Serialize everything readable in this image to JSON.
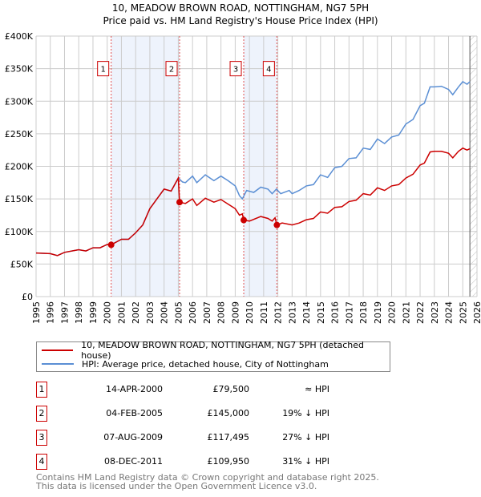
{
  "chart_data": {
    "type": "line",
    "title": "10, MEADOW BROWN ROAD, NOTTINGHAM, NG7 5PH",
    "subtitle": "Price paid vs. HM Land Registry's House Price Index (HPI)",
    "xlim": [
      1995,
      2026
    ],
    "ylim": [
      0,
      400000
    ],
    "x_ticks": [
      "1995",
      "1996",
      "1997",
      "1998",
      "1999",
      "2000",
      "2001",
      "2002",
      "2003",
      "2004",
      "2005",
      "2006",
      "2007",
      "2008",
      "2009",
      "2010",
      "2011",
      "2012",
      "2013",
      "2014",
      "2015",
      "2016",
      "2017",
      "2018",
      "2019",
      "2020",
      "2021",
      "2022",
      "2023",
      "2024",
      "2025",
      "2026"
    ],
    "y_ticks": [
      {
        "v": 0,
        "label": "£0"
      },
      {
        "v": 50000,
        "label": "£50K"
      },
      {
        "v": 100000,
        "label": "£100K"
      },
      {
        "v": 150000,
        "label": "£150K"
      },
      {
        "v": 200000,
        "label": "£200K"
      },
      {
        "v": 250000,
        "label": "£250K"
      },
      {
        "v": 300000,
        "label": "£300K"
      },
      {
        "v": 350000,
        "label": "£350K"
      },
      {
        "v": 400000,
        "label": "£400K"
      }
    ],
    "grid": true,
    "projection_start": 2025.5,
    "shaded_ranges": [
      [
        2000.28,
        2005.09
      ],
      [
        2009.6,
        2011.93
      ]
    ],
    "series": [
      {
        "name": "HPI: Average price, detached house, City of Nottingham",
        "color": "#5b8fd4",
        "x": [
          1995,
          1996,
          1996.5,
          1997,
          1998,
          1998.5,
          1999,
          1999.5,
          2000,
          2000.3,
          2001,
          2001.5,
          2002,
          2002.5,
          2003,
          2003.5,
          2004,
          2004.5,
          2005,
          2005.3,
          2005.5,
          2006,
          2006.3,
          2006.9,
          2007.5,
          2008,
          2008.5,
          2009,
          2009.3,
          2009.5,
          2009.8,
          2010.3,
          2010.8,
          2011.3,
          2011.6,
          2011.9,
          2012.2,
          2012.8,
          2013,
          2013.5,
          2014,
          2014.5,
          2015,
          2015.5,
          2016,
          2016.5,
          2017,
          2017.5,
          2018,
          2018.5,
          2019,
          2019.5,
          2020,
          2020.5,
          2021,
          2021.5,
          2022,
          2022.3,
          2022.7,
          2023,
          2023.5,
          2024,
          2024.3,
          2024.7,
          2025,
          2025.3,
          2025.5
        ],
        "y": [
          67,
          66,
          63,
          68,
          72,
          70,
          75,
          75,
          80,
          80,
          88,
          88,
          98,
          110,
          135,
          150,
          165,
          162,
          182,
          176,
          175,
          185,
          175,
          187,
          178,
          185,
          178,
          170,
          155,
          150,
          163,
          160,
          168,
          165,
          158,
          165,
          158,
          163,
          158,
          163,
          170,
          172,
          187,
          183,
          198,
          200,
          212,
          213,
          228,
          226,
          242,
          235,
          245,
          248,
          265,
          272,
          293,
          297,
          322,
          322,
          323,
          318,
          310,
          322,
          330,
          326,
          330
        ]
      },
      {
        "name": "10, MEADOW BROWN ROAD, NOTTINGHAM, NG7 5PH (detached house)",
        "color": "#cc0000",
        "x": [
          1995,
          1996,
          1996.5,
          1997,
          1998,
          1998.5,
          1999,
          1999.5,
          2000,
          2000.28,
          2001,
          2001.5,
          2002,
          2002.5,
          2003,
          2003.5,
          2004,
          2004.5,
          2005,
          2005.09,
          2005.5,
          2006,
          2006.3,
          2006.9,
          2007.5,
          2008,
          2008.5,
          2009,
          2009.3,
          2009.5,
          2009.6,
          2010,
          2010.8,
          2011.3,
          2011.6,
          2011.8,
          2011.93,
          2012.3,
          2013,
          2013.5,
          2014,
          2014.5,
          2015,
          2015.5,
          2016,
          2016.5,
          2017,
          2017.5,
          2018,
          2018.5,
          2019,
          2019.5,
          2020,
          2020.5,
          2021,
          2021.5,
          2022,
          2022.3,
          2022.7,
          2023,
          2023.5,
          2024,
          2024.3,
          2024.7,
          2025,
          2025.3,
          2025.5
        ],
        "y": [
          67,
          66,
          63,
          68,
          72,
          70,
          75,
          75,
          80,
          79.5,
          88,
          88,
          98,
          110,
          135,
          150,
          165,
          162,
          182,
          145,
          143,
          150,
          140,
          151,
          145,
          149,
          142,
          135,
          125,
          127,
          117.495,
          116,
          123,
          120,
          116,
          121,
          109.95,
          113,
          110,
          113,
          118,
          120,
          130,
          128,
          137,
          138,
          146,
          148,
          158,
          156,
          167,
          163,
          170,
          172,
          182,
          188,
          202,
          205,
          222,
          223,
          223,
          220,
          213,
          223,
          228,
          225,
          227
        ]
      }
    ],
    "y_unit": "thousands GBP",
    "sales": [
      {
        "n": "1",
        "x": 2000.28,
        "price": 79500,
        "date": "14-APR-2000",
        "price_label": "£79,500",
        "hpi": "≈ HPI"
      },
      {
        "n": "2",
        "x": 2005.09,
        "price": 145000,
        "date": "04-FEB-2005",
        "price_label": "£145,000",
        "hpi": "19% ↓ HPI"
      },
      {
        "n": "3",
        "x": 2009.6,
        "price": 117495,
        "date": "07-AUG-2009",
        "price_label": "£117,495",
        "hpi": "27% ↓ HPI"
      },
      {
        "n": "4",
        "x": 2011.93,
        "price": 109950,
        "date": "08-DEC-2011",
        "price_label": "£109,950",
        "hpi": "31% ↓ HPI"
      }
    ],
    "legend": {
      "placement": "below",
      "red": "10, MEADOW BROWN ROAD, NOTTINGHAM, NG7 5PH (detached house)",
      "blue": "HPI: Average price, detached house, City of Nottingham"
    }
  },
  "footer": {
    "line1": "Contains HM Land Registry data © Crown copyright and database right 2025.",
    "line2": "This data is licensed under the Open Government Licence v3.0."
  }
}
